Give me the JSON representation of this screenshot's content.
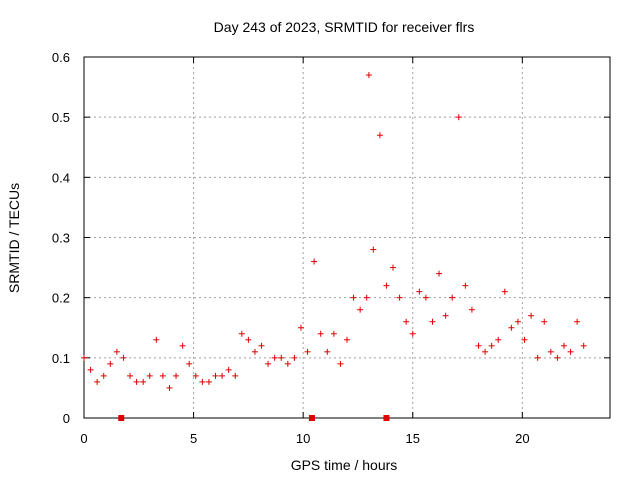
{
  "chart_data": {
    "type": "scatter",
    "title": "Day 243 of 2023, SRMTID for receiver flrs",
    "xlabel": "GPS time / hours",
    "ylabel": "SRMTID / TECUs",
    "xlim": [
      0,
      24
    ],
    "ylim": [
      0,
      0.6
    ],
    "xticks": [
      "0",
      "5",
      "10",
      "15",
      "20"
    ],
    "yticks": [
      "0",
      "0.1",
      "0.2",
      "0.3",
      "0.4",
      "0.5",
      "0.6"
    ],
    "grid": true,
    "marker": "+",
    "color": "#e00000",
    "series": [
      {
        "name": "SRMTID",
        "x": [
          0.0,
          0.3,
          0.6,
          0.9,
          1.2,
          1.5,
          1.8,
          2.1,
          2.4,
          2.7,
          3.0,
          3.3,
          3.6,
          3.9,
          4.2,
          4.5,
          4.8,
          5.1,
          5.4,
          5.7,
          6.0,
          6.3,
          6.6,
          6.9,
          7.2,
          7.5,
          7.8,
          8.1,
          8.4,
          8.7,
          9.0,
          9.3,
          9.6,
          9.9,
          10.2,
          10.5,
          10.8,
          11.1,
          11.4,
          11.7,
          12.0,
          12.3,
          12.6,
          12.9,
          13.0,
          13.2,
          13.5,
          13.8,
          14.1,
          14.4,
          14.7,
          15.0,
          15.3,
          15.6,
          15.9,
          16.2,
          16.5,
          16.8,
          17.1,
          17.4,
          17.7,
          18.0,
          18.3,
          18.6,
          18.9,
          19.2,
          19.5,
          19.8,
          20.1,
          20.4,
          20.7,
          21.0,
          21.3,
          21.6,
          21.9,
          22.2,
          22.5,
          22.8
        ],
        "y": [
          0.1,
          0.08,
          0.06,
          0.07,
          0.09,
          0.11,
          0.1,
          0.07,
          0.06,
          0.06,
          0.07,
          0.13,
          0.07,
          0.05,
          0.07,
          0.12,
          0.09,
          0.07,
          0.06,
          0.06,
          0.07,
          0.07,
          0.08,
          0.07,
          0.14,
          0.13,
          0.11,
          0.12,
          0.09,
          0.1,
          0.1,
          0.09,
          0.1,
          0.15,
          0.11,
          0.26,
          0.14,
          0.11,
          0.14,
          0.09,
          0.13,
          0.2,
          0.18,
          0.2,
          0.57,
          0.28,
          0.47,
          0.22,
          0.25,
          0.2,
          0.16,
          0.14,
          0.21,
          0.2,
          0.16,
          0.24,
          0.17,
          0.2,
          0.5,
          0.22,
          0.18,
          0.12,
          0.11,
          0.12,
          0.13,
          0.21,
          0.15,
          0.16,
          0.13,
          0.17,
          0.1,
          0.16,
          0.11,
          0.1,
          0.12,
          0.11,
          0.16,
          0.12
        ]
      }
    ],
    "outage_marks_x": [
      1.7,
      10.4,
      13.8
    ]
  }
}
